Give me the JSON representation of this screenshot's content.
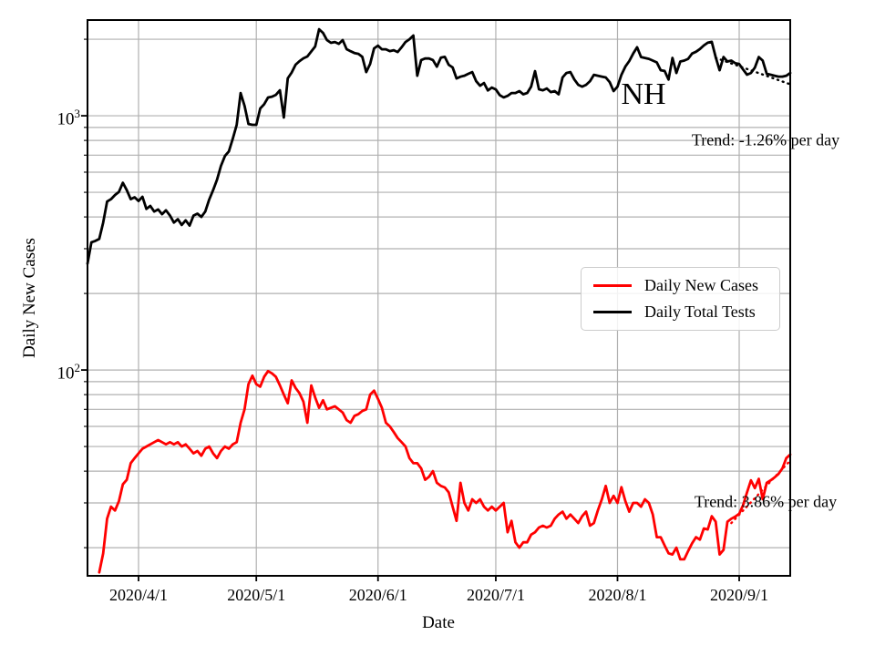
{
  "axes": {
    "xlabel": "Date",
    "ylabel": "Daily New Cases",
    "x_tick_labels": [
      "2020/4/1",
      "2020/5/1",
      "2020/6/1",
      "2020/7/1",
      "2020/8/1",
      "2020/9/1"
    ],
    "y_tick_labels": [
      {
        "value": 100,
        "base": "10",
        "exp": "2"
      },
      {
        "value": 1000,
        "base": "10",
        "exp": "3"
      }
    ]
  },
  "annotations": {
    "state_label": "NH",
    "tests_trend": "Trend: -1.26% per day",
    "cases_trend": "Trend: 3.86% per day"
  },
  "legend": {
    "items": [
      {
        "label": "Daily New Cases",
        "color": "#ff0000"
      },
      {
        "label": "Daily Total Tests",
        "color": "#000000"
      }
    ]
  },
  "colors": {
    "grid": "#b0b0b0",
    "spine": "#000000",
    "cases": "#ff0000",
    "tests": "#000000"
  },
  "chart_data": {
    "type": "line",
    "title": "NH",
    "xlabel": "Date",
    "ylabel": "Daily New Cases",
    "yscale": "log",
    "grid": true,
    "legend_position": "center-right",
    "xlim": [
      "2020/3/19",
      "2020/9/14"
    ],
    "ylim": [
      15.5,
      2380
    ],
    "x_ticks": [
      "2020/4/1",
      "2020/5/1",
      "2020/6/1",
      "2020/7/1",
      "2020/8/1",
      "2020/9/1"
    ],
    "y_major_ticks": [
      100,
      1000
    ],
    "y_gridlines": [
      20,
      30,
      40,
      50,
      60,
      70,
      80,
      90,
      100,
      200,
      300,
      400,
      500,
      600,
      700,
      800,
      900,
      1000,
      2000
    ],
    "series": [
      {
        "name": "Daily New Cases",
        "color": "#ff0000",
        "frequency": "daily",
        "start_date": "2020/3/22",
        "values": [
          16,
          19,
          26,
          29,
          28,
          30.5,
          35.5,
          37,
          43,
          45,
          47,
          49,
          50,
          51,
          52,
          53,
          52,
          51,
          52,
          51,
          52,
          50,
          51,
          49,
          47,
          48,
          46,
          49,
          50,
          47,
          45,
          48,
          50,
          49,
          51,
          52,
          62,
          70,
          88,
          95,
          88,
          86,
          94,
          99,
          97,
          94,
          87,
          80,
          74,
          91,
          85,
          81,
          75,
          62,
          87,
          78,
          71,
          76,
          70,
          71,
          72,
          70,
          68,
          63.5,
          62,
          66,
          67,
          69,
          70,
          80,
          83,
          77,
          71,
          62,
          60,
          57,
          54,
          52,
          50,
          45,
          43,
          43,
          41,
          37,
          38,
          40,
          36,
          35,
          34.5,
          33,
          29,
          25.5,
          36,
          30,
          28,
          31,
          30,
          31,
          29,
          28,
          29,
          28,
          29,
          30,
          23,
          25.5,
          21,
          20,
          21,
          21,
          22.5,
          23,
          24,
          24.4,
          24,
          24.4,
          26,
          27,
          27.7,
          26,
          27,
          26,
          25,
          26.6,
          27.7,
          24.4,
          25,
          28,
          31,
          35,
          30,
          32,
          30,
          34.6,
          30.5,
          27.7,
          30,
          30,
          29,
          31,
          30,
          27,
          22,
          22,
          20.4,
          19,
          18.8,
          20,
          18,
          18,
          19.4,
          20.8,
          22,
          21.5,
          23.8,
          23.6,
          26.6,
          25.3,
          18.8,
          19.6,
          25.3,
          26,
          26.5,
          27.2,
          29.4,
          33,
          36.8,
          34.3,
          37.3,
          31,
          36,
          36.8,
          37.8,
          39,
          41,
          45,
          46.5
        ]
      },
      {
        "name": "Daily Total Tests",
        "color": "#000000",
        "frequency": "daily",
        "start_date": "2020/3/19",
        "values": [
          262,
          318,
          322,
          328,
          380,
          460,
          470,
          488,
          502,
          545,
          510,
          470,
          478,
          462,
          480,
          430,
          442,
          420,
          428,
          410,
          425,
          405,
          380,
          392,
          372,
          388,
          370,
          405,
          412,
          400,
          420,
          468,
          510,
          560,
          635,
          695,
          724,
          813,
          921,
          1229,
          1095,
          928,
          921,
          921,
          1068,
          1110,
          1180,
          1189,
          1209,
          1260,
          984,
          1403,
          1480,
          1589,
          1641,
          1683,
          1711,
          1790,
          1873,
          2190,
          2119,
          1985,
          1936,
          1951,
          1919,
          1985,
          1828,
          1795,
          1766,
          1753,
          1705,
          1486,
          1600,
          1841,
          1888,
          1826,
          1826,
          1796,
          1811,
          1781,
          1860,
          1951,
          2000,
          2068,
          1437,
          1656,
          1680,
          1680,
          1656,
          1560,
          1693,
          1705,
          1587,
          1549,
          1402,
          1425,
          1437,
          1462,
          1486,
          1368,
          1313,
          1346,
          1258,
          1291,
          1269,
          1206,
          1181,
          1198,
          1229,
          1229,
          1250,
          1215,
          1229,
          1302,
          1498,
          1271,
          1260,
          1281,
          1239,
          1250,
          1215,
          1415,
          1474,
          1486,
          1390,
          1324,
          1302,
          1324,
          1368,
          1449,
          1437,
          1426,
          1415,
          1357,
          1250,
          1302,
          1449,
          1561,
          1642,
          1757,
          1860,
          1702,
          1688,
          1675,
          1648,
          1622,
          1511,
          1500,
          1389,
          1688,
          1474,
          1635,
          1648,
          1675,
          1757,
          1786,
          1830,
          1890,
          1938,
          1954,
          1702,
          1511,
          1702,
          1635,
          1648,
          1610,
          1597,
          1520,
          1450,
          1474,
          1547,
          1702,
          1648,
          1462,
          1450,
          1438,
          1426,
          1426,
          1438,
          1474
        ]
      }
    ],
    "trend_lines": [
      {
        "series": "Daily New Cases",
        "label": "Trend: 3.86% per day",
        "rate_percent_per_day": 3.86,
        "color": "#ff0000",
        "start_date": "2020/8/30",
        "start_value": 25,
        "end_date": "2020/9/14",
        "end_value": 44
      },
      {
        "series": "Daily Total Tests",
        "label": "Trend: -1.26% per day",
        "rate_percent_per_day": -1.26,
        "color": "#000000",
        "start_date": "2020/8/26",
        "start_value": 1690,
        "end_date": "2020/9/14",
        "end_value": 1330
      }
    ]
  }
}
